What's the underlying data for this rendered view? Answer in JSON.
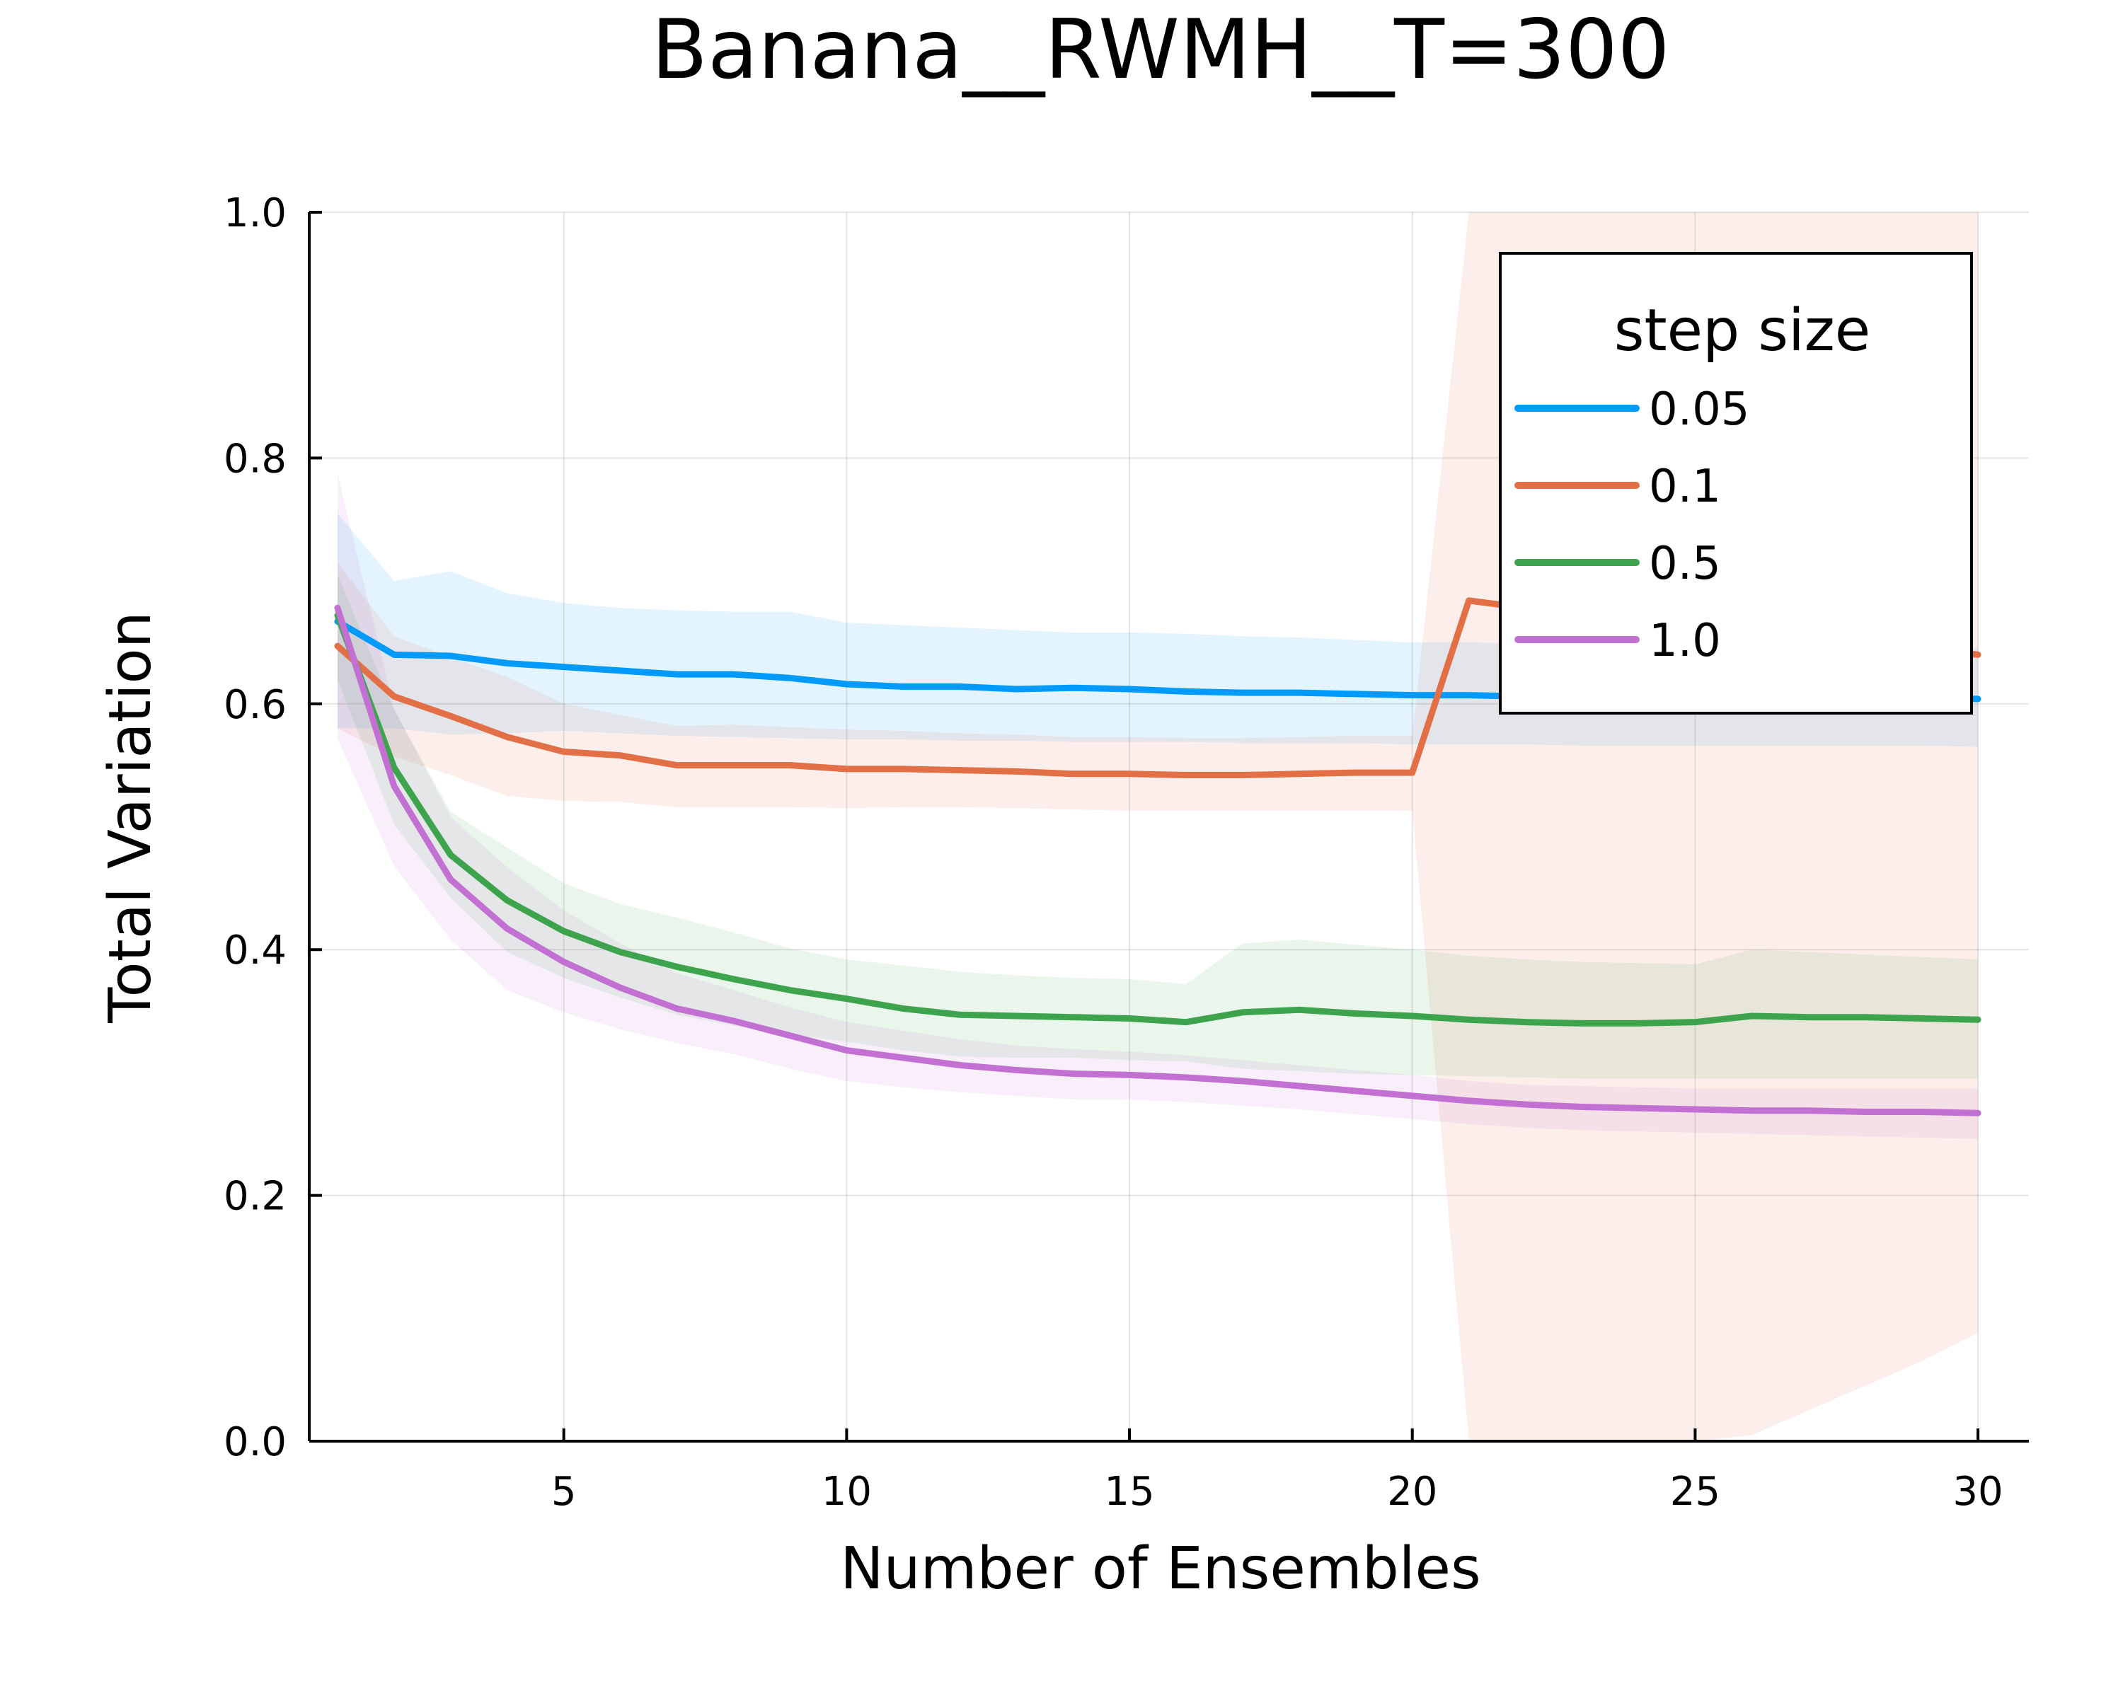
{
  "chart_data": {
    "type": "line",
    "title": "Banana__RWMH__T=300",
    "xlabel": "Number of Ensembles",
    "ylabel": "Total Variation",
    "xlim": [
      0.5,
      30.9
    ],
    "ylim": [
      0.0,
      1.0
    ],
    "xticks": [
      5,
      10,
      15,
      20,
      25,
      30
    ],
    "xtick_labels": [
      "5",
      "10",
      "15",
      "20",
      "25",
      "30"
    ],
    "yticks": [
      0.0,
      0.2,
      0.4,
      0.6,
      0.8,
      1.0
    ],
    "ytick_labels": [
      "0.0",
      "0.2",
      "0.4",
      "0.6",
      "0.8",
      "1.0"
    ],
    "grid": true,
    "legend": {
      "title": "step size",
      "position": "top-right"
    },
    "x": [
      1,
      2,
      3,
      4,
      5,
      6,
      7,
      8,
      9,
      10,
      11,
      12,
      13,
      14,
      15,
      16,
      17,
      18,
      19,
      20,
      21,
      22,
      23,
      24,
      25,
      26,
      27,
      28,
      29,
      30
    ],
    "series": [
      {
        "name": "0.05",
        "color": "#009AFA",
        "values": [
          0.667,
          0.64,
          0.639,
          0.633,
          0.63,
          0.627,
          0.624,
          0.624,
          0.621,
          0.616,
          0.614,
          0.614,
          0.612,
          0.613,
          0.612,
          0.61,
          0.609,
          0.609,
          0.608,
          0.607,
          0.607,
          0.606,
          0.606,
          0.606,
          0.606,
          0.605,
          0.605,
          0.605,
          0.605,
          0.604
        ],
        "upper": [
          0.755,
          0.7,
          0.708,
          0.69,
          0.682,
          0.678,
          0.676,
          0.675,
          0.675,
          0.666,
          0.664,
          0.662,
          0.66,
          0.658,
          0.658,
          0.657,
          0.655,
          0.654,
          0.652,
          0.65,
          0.65,
          0.649,
          0.648,
          0.647,
          0.646,
          0.646,
          0.645,
          0.645,
          0.645,
          0.645
        ],
        "lower": [
          0.58,
          0.58,
          0.575,
          0.576,
          0.578,
          0.576,
          0.574,
          0.573,
          0.572,
          0.571,
          0.571,
          0.57,
          0.57,
          0.569,
          0.569,
          0.569,
          0.568,
          0.568,
          0.568,
          0.567,
          0.567,
          0.567,
          0.566,
          0.566,
          0.566,
          0.566,
          0.566,
          0.566,
          0.566,
          0.565
        ]
      },
      {
        "name": "0.1",
        "color": "#E26F46",
        "values": [
          0.647,
          0.606,
          0.59,
          0.573,
          0.561,
          0.558,
          0.55,
          0.55,
          0.55,
          0.547,
          0.547,
          0.546,
          0.545,
          0.543,
          0.543,
          0.542,
          0.542,
          0.543,
          0.544,
          0.544,
          0.684,
          0.678,
          0.672,
          0.668,
          0.662,
          0.656,
          0.652,
          0.648,
          0.644,
          0.64
        ],
        "upper": [
          0.715,
          0.655,
          0.638,
          0.622,
          0.6,
          0.591,
          0.582,
          0.583,
          0.581,
          0.579,
          0.578,
          0.576,
          0.575,
          0.573,
          0.573,
          0.572,
          0.572,
          0.573,
          0.574,
          0.574,
          1.0,
          1.0,
          1.0,
          1.0,
          1.0,
          1.0,
          1.0,
          1.0,
          1.0,
          1.0
        ],
        "lower": [
          0.58,
          0.557,
          0.542,
          0.525,
          0.521,
          0.52,
          0.516,
          0.516,
          0.516,
          0.515,
          0.516,
          0.516,
          0.515,
          0.514,
          0.513,
          0.513,
          0.513,
          0.513,
          0.513,
          0.513,
          0.0,
          0.0,
          0.0,
          0.0,
          0.0,
          0.005,
          0.025,
          0.045,
          0.065,
          0.088
        ]
      },
      {
        "name": "0.5",
        "color": "#3DA44D",
        "values": [
          0.672,
          0.548,
          0.477,
          0.44,
          0.415,
          0.398,
          0.386,
          0.376,
          0.367,
          0.36,
          0.352,
          0.347,
          0.346,
          0.345,
          0.344,
          0.341,
          0.349,
          0.351,
          0.348,
          0.346,
          0.343,
          0.341,
          0.34,
          0.34,
          0.341,
          0.346,
          0.345,
          0.345,
          0.344,
          0.343
        ],
        "upper": [
          0.705,
          0.595,
          0.512,
          0.483,
          0.454,
          0.437,
          0.426,
          0.414,
          0.401,
          0.392,
          0.387,
          0.382,
          0.379,
          0.377,
          0.376,
          0.372,
          0.405,
          0.408,
          0.404,
          0.4,
          0.395,
          0.392,
          0.39,
          0.389,
          0.388,
          0.4,
          0.398,
          0.396,
          0.394,
          0.392
        ],
        "lower": [
          0.62,
          0.502,
          0.442,
          0.398,
          0.377,
          0.361,
          0.347,
          0.338,
          0.331,
          0.325,
          0.318,
          0.313,
          0.312,
          0.312,
          0.31,
          0.309,
          0.303,
          0.301,
          0.299,
          0.298,
          0.297,
          0.296,
          0.295,
          0.295,
          0.295,
          0.295,
          0.295,
          0.295,
          0.295,
          0.295
        ]
      },
      {
        "name": "1.0",
        "color": "#C271D2",
        "values": [
          0.678,
          0.533,
          0.457,
          0.417,
          0.39,
          0.369,
          0.352,
          0.342,
          0.33,
          0.318,
          0.312,
          0.306,
          0.302,
          0.299,
          0.298,
          0.296,
          0.293,
          0.289,
          0.285,
          0.281,
          0.277,
          0.274,
          0.272,
          0.271,
          0.27,
          0.269,
          0.269,
          0.268,
          0.268,
          0.267
        ],
        "upper": [
          0.787,
          0.596,
          0.508,
          0.467,
          0.432,
          0.405,
          0.381,
          0.367,
          0.353,
          0.341,
          0.334,
          0.327,
          0.322,
          0.319,
          0.317,
          0.314,
          0.31,
          0.306,
          0.302,
          0.298,
          0.293,
          0.29,
          0.289,
          0.288,
          0.287,
          0.287,
          0.287,
          0.287,
          0.287,
          0.287
        ],
        "lower": [
          0.572,
          0.468,
          0.408,
          0.367,
          0.349,
          0.335,
          0.324,
          0.315,
          0.303,
          0.293,
          0.288,
          0.284,
          0.281,
          0.278,
          0.278,
          0.276,
          0.273,
          0.27,
          0.266,
          0.262,
          0.258,
          0.255,
          0.253,
          0.252,
          0.251,
          0.25,
          0.249,
          0.248,
          0.247,
          0.246
        ]
      }
    ]
  }
}
